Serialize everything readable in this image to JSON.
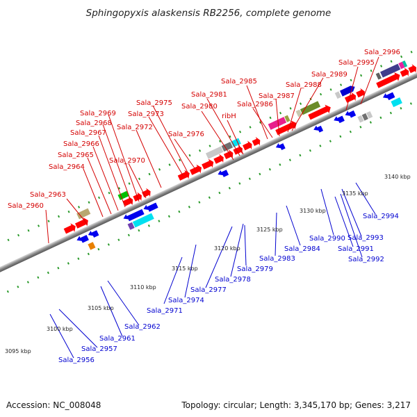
{
  "title": "Sphingopyxis alaskensis RB2256, complete genome",
  "footer": {
    "accession": "Accession: NC_008048",
    "summary": "Topology: circular; Length: 3,345,170 bp; Genes: 3,217"
  },
  "scale_labels": [
    "3095 kbp",
    "3100 kbp",
    "3105 kbp",
    "3110 kbp",
    "3115 kbp",
    "3120 kbp",
    "3125 kbp",
    "3130 kbp",
    "3135 kbp",
    "3140 kbp"
  ],
  "top_labels": [
    "Sala_2960",
    "Sala_2963",
    "Sala_2964",
    "Sala_2965",
    "Sala_2966",
    "Sala_2967",
    "Sala_2968",
    "Sala_2969",
    "Sala_2970",
    "Sala_2972",
    "Sala_2973",
    "Sala_2975",
    "Sala_2976",
    "Sala_2980",
    "Sala_2981",
    "ribH",
    "Sala_2985",
    "Sala_2986",
    "Sala_2987",
    "Sala_2988",
    "Sala_2989",
    "Sala_2995",
    "Sala_2996"
  ],
  "bottom_labels": [
    "Sala_2956",
    "Sala_2957",
    "Sala_2961",
    "Sala_2962",
    "Sala_2971",
    "Sala_2974",
    "Sala_2977",
    "Sala_2978",
    "Sala_2979",
    "Sala_2983",
    "Sala_2984",
    "Sala_2990",
    "Sala_2991",
    "Sala_2992",
    "Sala_2993",
    "Sala_2994"
  ],
  "colors": {
    "top_label": "#d40000",
    "bottom_label": "#0000d0",
    "forward_gene": "#ff0000",
    "reverse_gene": "#0000ee",
    "tick": "#2a9a2a",
    "backbone": "#888888"
  }
}
